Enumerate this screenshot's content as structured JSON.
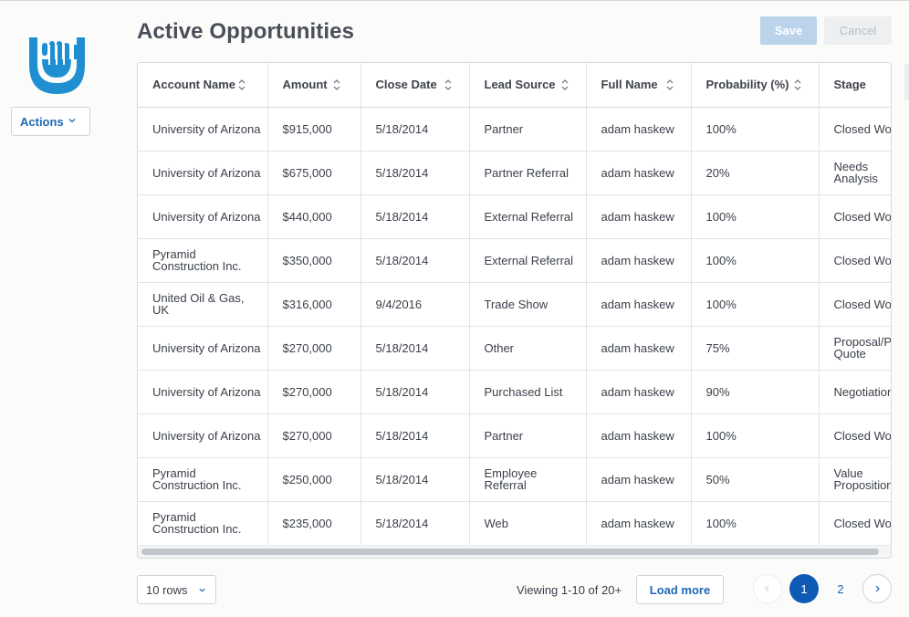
{
  "page": {
    "title": "Active Opportunities"
  },
  "sidebar": {
    "actions_label": "Actions"
  },
  "toolbar": {
    "save_label": "Save",
    "cancel_label": "Cancel"
  },
  "table": {
    "columns": [
      "Account Name",
      "Amount",
      "Close Date",
      "Lead Source",
      "Full Name",
      "Probability (%)",
      "Stage"
    ],
    "rows": [
      [
        "University of Arizona",
        "$915,000",
        "5/18/2014",
        "Partner",
        "adam haskew",
        "100%",
        "Closed Won"
      ],
      [
        "University of Arizona",
        "$675,000",
        "5/18/2014",
        "Partner Referral",
        "adam haskew",
        "20%",
        "Needs Analysis"
      ],
      [
        "University of Arizona",
        "$440,000",
        "5/18/2014",
        "External Referral",
        "adam haskew",
        "100%",
        "Closed Won"
      ],
      [
        "Pyramid Construction Inc.",
        "$350,000",
        "5/18/2014",
        "External Referral",
        "adam haskew",
        "100%",
        "Closed Won"
      ],
      [
        "United Oil & Gas, UK",
        "$316,000",
        "9/4/2016",
        "Trade Show",
        "adam haskew",
        "100%",
        "Closed Won"
      ],
      [
        "University of Arizona",
        "$270,000",
        "5/18/2014",
        "Other",
        "adam haskew",
        "75%",
        "Proposal/Price Quote"
      ],
      [
        "University of Arizona",
        "$270,000",
        "5/18/2014",
        "Purchased List",
        "adam haskew",
        "90%",
        "Negotiation/Review"
      ],
      [
        "University of Arizona",
        "$270,000",
        "5/18/2014",
        "Partner",
        "adam haskew",
        "100%",
        "Closed Won"
      ],
      [
        "Pyramid Construction Inc.",
        "$250,000",
        "5/18/2014",
        "Employee Referral",
        "adam haskew",
        "50%",
        "Value Proposition"
      ],
      [
        "Pyramid Construction Inc.",
        "$235,000",
        "5/18/2014",
        "Web",
        "adam haskew",
        "100%",
        "Closed Won"
      ]
    ]
  },
  "footer": {
    "rows_select": "10 rows",
    "viewing": "Viewing 1-10 of 20+",
    "load_more": "Load more",
    "pages": [
      "1",
      "2"
    ],
    "current_page": "1"
  },
  "colors": {
    "brand": "#1f8fd2",
    "link": "#1e69b4",
    "current_page": "#0e5bb5",
    "save_disabled": "#bcd3ec"
  },
  "icons": {
    "logo": "brand-logo-hand",
    "actions_dropdown": "chevron-down-icon",
    "sort": "sort-icon",
    "prev": "chevron-left-icon",
    "next": "chevron-right-icon"
  }
}
